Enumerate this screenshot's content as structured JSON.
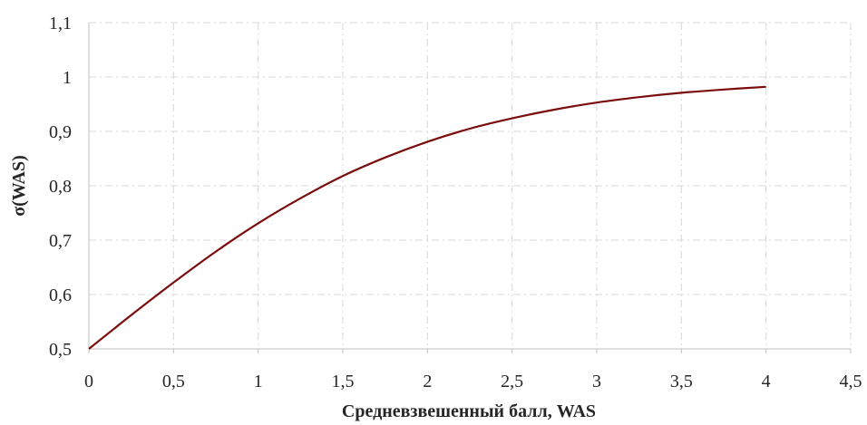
{
  "chart_data": {
    "type": "line",
    "xlabel": "Средневзвешенный балл, WAS",
    "ylabel": "σ(WAS)",
    "xlim": [
      0,
      4.5
    ],
    "ylim": [
      0.5,
      1.1
    ],
    "x_ticks": [
      "0",
      "0,5",
      "1",
      "1,5",
      "2",
      "2,5",
      "3",
      "3,5",
      "4",
      "4,5"
    ],
    "y_ticks": [
      "0,5",
      "0,6",
      "0,7",
      "0,8",
      "0,9",
      "1",
      "1,1"
    ],
    "grid": true,
    "legend": "none",
    "series": [
      {
        "color": "#7b0c0c",
        "x": [
          0,
          0.25,
          0.5,
          0.75,
          1,
          1.25,
          1.5,
          1.75,
          2,
          2.25,
          2.5,
          2.75,
          3,
          3.25,
          3.5,
          3.75,
          4
        ],
        "y": [
          0.5,
          0.562,
          0.622,
          0.679,
          0.731,
          0.777,
          0.818,
          0.852,
          0.881,
          0.905,
          0.924,
          0.94,
          0.953,
          0.963,
          0.971,
          0.977,
          0.982
        ]
      }
    ]
  }
}
